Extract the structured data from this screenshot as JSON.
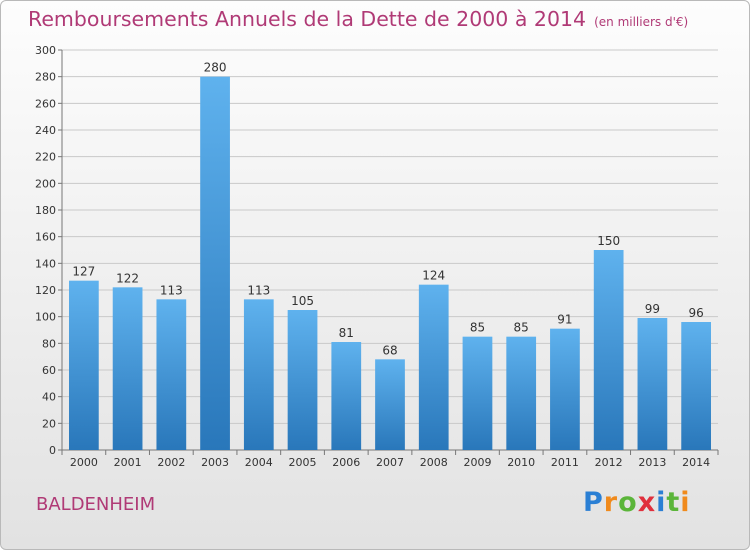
{
  "header": {
    "title": "Remboursements Annuels de la Dette de 2000 à 2014",
    "subtitle": "(en milliers d'€)"
  },
  "footer": {
    "place": "BALDENHEIM",
    "logo_letters": [
      "P",
      "r",
      "o",
      "x",
      "i",
      "t",
      "i"
    ]
  },
  "colors": {
    "title": "#b03a76",
    "bar_top": "#5fb2ee",
    "bar_bottom": "#2977ba",
    "grid": "#c9c9c9",
    "logo": [
      "#2a7fd4",
      "#f08a1c",
      "#5bb53a",
      "#e0303d",
      "#2a7fd4",
      "#5bb53a",
      "#f08a1c"
    ]
  },
  "chart_data": {
    "type": "bar",
    "categories": [
      "2000",
      "2001",
      "2002",
      "2003",
      "2004",
      "2005",
      "2006",
      "2007",
      "2008",
      "2009",
      "2010",
      "2011",
      "2012",
      "2013",
      "2014"
    ],
    "values": [
      127,
      122,
      113,
      280,
      113,
      105,
      81,
      68,
      124,
      85,
      85,
      91,
      150,
      99,
      96
    ],
    "ylim": [
      0,
      300
    ],
    "ytick_step": 20,
    "grid": true,
    "data_labels": true
  }
}
